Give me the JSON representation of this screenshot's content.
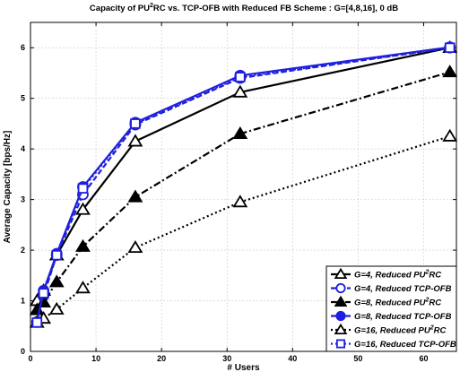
{
  "chart_data": {
    "type": "line",
    "title": {
      "prefix": "Capacity of PU",
      "sup": "2",
      "suffix": "RC vs. TCP-OFB with Reduced FB Scheme : G=[4,8,16], 0 dB"
    },
    "xlabel": "# Users",
    "ylabel": "Average Capacity [bps/Hz]",
    "xlim": [
      0,
      65
    ],
    "ylim": [
      0,
      6.5
    ],
    "xticks": [
      "0",
      "10",
      "20",
      "30",
      "40",
      "50",
      "60"
    ],
    "yticks": [
      "0",
      "1",
      "2",
      "3",
      "4",
      "5",
      "6"
    ],
    "grid": true,
    "legend_position": "bottom-right",
    "x": [
      1,
      2,
      4,
      8,
      16,
      32,
      64
    ],
    "series": [
      {
        "legend": {
          "prefix": "G=4, Reduced PU",
          "sup": "2",
          "suffix": "RC"
        },
        "values": [
          1.0,
          1.2,
          1.9,
          2.8,
          4.15,
          5.12,
          6.0
        ],
        "color": "#000000",
        "dash": "solid",
        "marker": "triangle",
        "filled": false
      },
      {
        "legend": {
          "prefix": "G=4, Reduced TCP-OFB",
          "sup": "",
          "suffix": ""
        },
        "values": [
          0.58,
          1.1,
          1.9,
          3.1,
          4.48,
          5.4,
          6.0
        ],
        "color": "#1f1fe0",
        "dash": "dash",
        "marker": "circle",
        "filled": false
      },
      {
        "legend": {
          "prefix": "G=8, Reduced PU",
          "sup": "2",
          "suffix": "RC"
        },
        "values": [
          0.82,
          0.97,
          1.37,
          2.07,
          3.05,
          4.3,
          5.52
        ],
        "color": "#000000",
        "dash": "dashdot",
        "marker": "triangle",
        "filled": true
      },
      {
        "legend": {
          "prefix": "G=8, Reduced TCP-OFB",
          "sup": "",
          "suffix": ""
        },
        "values": [
          0.58,
          1.2,
          1.93,
          3.25,
          4.52,
          5.45,
          6.01
        ],
        "color": "#1f1fe0",
        "dash": "solid",
        "marker": "circle",
        "filled": true
      },
      {
        "legend": {
          "prefix": "G=16, Reduced PU",
          "sup": "2",
          "suffix": "RC"
        },
        "values": [
          0.57,
          0.65,
          0.83,
          1.25,
          2.05,
          2.95,
          4.25
        ],
        "color": "#000000",
        "dash": "dot",
        "marker": "triangle",
        "filled": false
      },
      {
        "legend": {
          "prefix": "G=16, Reduced TCP-OFB",
          "sup": "",
          "suffix": ""
        },
        "values": [
          0.57,
          1.15,
          1.9,
          3.22,
          4.5,
          5.42,
          6.0
        ],
        "color": "#1f1fe0",
        "dash": "dot",
        "marker": "square",
        "filled": false
      }
    ]
  }
}
